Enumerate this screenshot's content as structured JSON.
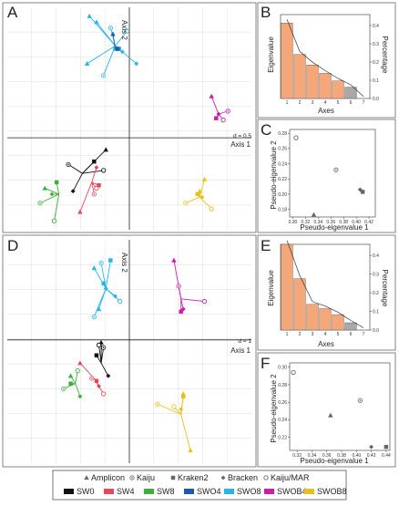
{
  "chart_data": [
    {
      "panel": "A",
      "type": "scatter",
      "axis1_label": "Axis 1",
      "axis2_label": "Axis 2",
      "d_label": "d = 0.5",
      "xlim": [
        -2.6,
        2.6
      ],
      "ylim": [
        -1.55,
        2.2
      ],
      "groups": [
        {
          "sample": "SWO8",
          "color": "#29b5e8",
          "centroid": [
            -0.3,
            1.55
          ],
          "points": [
            {
              "method": "Amplicon",
              "x": -0.85,
              "y": 2.05
            },
            {
              "method": "Kaiju",
              "x": -0.4,
              "y": 1.85
            },
            {
              "method": "Kraken2",
              "x": -0.22,
              "y": 1.5
            },
            {
              "method": "Bracken",
              "x": -0.15,
              "y": 1.45
            },
            {
              "method": "Kaiju/MAR",
              "x": -0.05,
              "y": 1.8
            },
            {
              "method": "Amplicon",
              "x": -0.9,
              "y": 1.25
            },
            {
              "method": "Kaiju",
              "x": -0.55,
              "y": 1.05
            },
            {
              "method": "Kraken2",
              "x": -0.3,
              "y": 1.5
            },
            {
              "method": "Bracken",
              "x": 0.15,
              "y": 1.25
            },
            {
              "method": "Amplicon",
              "x": -0.7,
              "y": 1.95
            }
          ]
        },
        {
          "sample": "SWO4",
          "color": "#1e5aa8",
          "centroid": [
            -0.3,
            1.5
          ],
          "points": [
            {
              "method": "Amplicon",
              "x": -0.35,
              "y": 1.75
            },
            {
              "method": "Kraken2",
              "x": -0.25,
              "y": 1.5
            }
          ]
        },
        {
          "sample": "SWOB4",
          "color": "#c81eaa",
          "centroid": [
            1.9,
            0.4
          ],
          "points": [
            {
              "method": "Amplicon",
              "x": 1.75,
              "y": 0.7
            },
            {
              "method": "Kaiju",
              "x": 2.1,
              "y": 0.45
            },
            {
              "method": "Kraken2",
              "x": 1.85,
              "y": 0.33
            },
            {
              "method": "Bracken",
              "x": 1.9,
              "y": 0.4
            },
            {
              "method": "Kaiju/MAR",
              "x": 2.0,
              "y": 0.3
            }
          ]
        },
        {
          "sample": "SWOB8",
          "color": "#e8c21c",
          "centroid": [
            1.5,
            -1.0
          ],
          "points": [
            {
              "method": "Amplicon",
              "x": 1.6,
              "y": -0.7
            },
            {
              "method": "Kaiju",
              "x": 1.2,
              "y": -1.1
            },
            {
              "method": "Kraken2",
              "x": 1.45,
              "y": -0.95
            },
            {
              "method": "Bracken",
              "x": 1.55,
              "y": -1.0
            },
            {
              "method": "Kaiju/MAR",
              "x": 1.75,
              "y": -1.2
            },
            {
              "method": "Amplicon",
              "x": 1.5,
              "y": -0.9
            }
          ]
        },
        {
          "sample": "SW0",
          "color": "#111111",
          "centroid": [
            -1.0,
            -0.6
          ],
          "points": [
            {
              "method": "Amplicon",
              "x": -0.5,
              "y": -0.2
            },
            {
              "method": "Kaiju",
              "x": -1.3,
              "y": -0.45
            },
            {
              "method": "Kraken2",
              "x": -0.75,
              "y": -0.4
            },
            {
              "method": "Bracken",
              "x": -1.2,
              "y": -0.9
            },
            {
              "method": "Kaiju/MAR",
              "x": -0.55,
              "y": -0.55
            }
          ]
        },
        {
          "sample": "SW4",
          "color": "#e04a5a",
          "centroid": [
            -0.8,
            -0.75
          ],
          "points": [
            {
              "method": "Amplicon",
              "x": -1.05,
              "y": -1.25
            },
            {
              "method": "Kaiju",
              "x": -0.75,
              "y": -0.95
            },
            {
              "method": "Kraken2",
              "x": -0.65,
              "y": -0.8
            },
            {
              "method": "Bracken",
              "x": -0.7,
              "y": -0.5
            },
            {
              "method": "Kaiju/MAR",
              "x": -0.7,
              "y": -0.85
            }
          ]
        },
        {
          "sample": "SW8",
          "color": "#3fae3f",
          "centroid": [
            -1.5,
            -0.95
          ],
          "points": [
            {
              "method": "Amplicon",
              "x": -1.8,
              "y": -0.85
            },
            {
              "method": "Kaiju",
              "x": -1.9,
              "y": -1.1
            },
            {
              "method": "Kraken2",
              "x": -1.55,
              "y": -0.75
            },
            {
              "method": "Bracken",
              "x": -1.65,
              "y": -0.95
            },
            {
              "method": "Kaiju/MAR",
              "x": -1.6,
              "y": -1.4
            }
          ]
        }
      ]
    },
    {
      "panel": "B",
      "type": "bar",
      "xlabel": "Axes",
      "ylabel": "Eigenvalue",
      "y2label": "Percentage",
      "categories": [
        "1",
        "2",
        "3",
        "4",
        "5",
        "6",
        "7"
      ],
      "values": [
        1.8,
        1.05,
        0.8,
        0.6,
        0.42,
        0.27,
        0.0
      ],
      "highlight_color": "#f5a77a",
      "gray_color": "#a8a8a8",
      "ylim": [
        0,
        2.0
      ],
      "y2_ticks": [
        "0.0",
        "0.1",
        "0.2",
        "0.3",
        "0.4"
      ]
    },
    {
      "panel": "C",
      "type": "scatter",
      "xlabel": "Pseudo-eigenvalue 1",
      "ylabel": "Pseudo-eigenvalue 2",
      "x_ticks": [
        "0.30",
        "0.32",
        "0.34",
        "0.36",
        "0.38",
        "0.40",
        "0.42"
      ],
      "y_ticks": [
        "0.18",
        "0.20",
        "0.22",
        "0.24",
        "0.26",
        "0.28"
      ],
      "xlim": [
        0.295,
        0.43
      ],
      "ylim": [
        0.17,
        0.285
      ],
      "points": [
        {
          "method": "Kaiju/MAR",
          "x": 0.305,
          "y": 0.274
        },
        {
          "method": "Kaiju",
          "x": 0.368,
          "y": 0.232
        },
        {
          "method": "Bracken",
          "x": 0.406,
          "y": 0.206
        },
        {
          "method": "Kraken2",
          "x": 0.41,
          "y": 0.203
        },
        {
          "method": "Amplicon",
          "x": 0.333,
          "y": 0.173
        }
      ]
    },
    {
      "panel": "D",
      "type": "scatter",
      "axis1_label": "Axis 1",
      "axis2_label": "Axis 2",
      "d_label": "d = 1",
      "xlim": [
        -2.6,
        2.6
      ],
      "ylim": [
        -2.4,
        1.95
      ],
      "groups": [
        {
          "sample": "SWO8",
          "color": "#29b5e8",
          "centroid": [
            -0.5,
            1.0
          ],
          "points": [
            {
              "method": "Amplicon",
              "x": -0.75,
              "y": 1.4
            },
            {
              "method": "Kaiju",
              "x": -0.6,
              "y": 1.5
            },
            {
              "method": "Kraken2",
              "x": -0.55,
              "y": 1.1
            },
            {
              "method": "Bracken",
              "x": -0.3,
              "y": 0.85
            },
            {
              "method": "Kaiju/MAR",
              "x": -0.2,
              "y": 0.75
            },
            {
              "method": "Amplicon",
              "x": -0.65,
              "y": 0.6
            },
            {
              "method": "Kaiju",
              "x": -0.75,
              "y": 0.45
            },
            {
              "method": "Kraken2",
              "x": -0.4,
              "y": 1.55
            },
            {
              "method": "Bracken",
              "x": -0.5,
              "y": 1.0
            }
          ]
        },
        {
          "sample": "SWOB4",
          "color": "#c81eaa",
          "centroid": [
            1.1,
            0.8
          ],
          "points": [
            {
              "method": "Amplicon",
              "x": 0.95,
              "y": 1.55
            },
            {
              "method": "Kaiju",
              "x": 1.05,
              "y": 1.05
            },
            {
              "method": "Kraken2",
              "x": 1.1,
              "y": 0.55
            },
            {
              "method": "Bracken",
              "x": 1.15,
              "y": 0.6
            },
            {
              "method": "Kaiju/MAR",
              "x": 1.6,
              "y": 0.75
            }
          ]
        },
        {
          "sample": "SWOB8",
          "color": "#e8c21c",
          "centroid": [
            1.1,
            -1.45
          ],
          "points": [
            {
              "method": "Amplicon",
              "x": 1.15,
              "y": -1.05
            },
            {
              "method": "Kaiju",
              "x": 0.6,
              "y": -1.25
            },
            {
              "method": "Kraken2",
              "x": 1.15,
              "y": -1.1
            },
            {
              "method": "Bracken",
              "x": 1.1,
              "y": -1.35
            },
            {
              "method": "Kaiju/MAR",
              "x": 0.95,
              "y": -1.3
            },
            {
              "method": "Amplicon",
              "x": 1.3,
              "y": -2.15
            }
          ]
        },
        {
          "sample": "SW0",
          "color": "#111111",
          "centroid": [
            -0.6,
            -0.45
          ],
          "points": [
            {
              "method": "Amplicon",
              "x": -0.6,
              "y": -0.05
            },
            {
              "method": "Kaiju",
              "x": -0.55,
              "y": -0.15
            },
            {
              "method": "Kraken2",
              "x": -0.7,
              "y": -0.3
            },
            {
              "method": "Bracken",
              "x": -0.45,
              "y": -0.7
            },
            {
              "method": "Kaiju/MAR",
              "x": -0.65,
              "y": -0.1
            }
          ]
        },
        {
          "sample": "SW4",
          "color": "#e04a5a",
          "centroid": [
            -0.75,
            -0.75
          ],
          "points": [
            {
              "method": "Amplicon",
              "x": -1.05,
              "y": -0.45
            },
            {
              "method": "Kaiju",
              "x": -0.8,
              "y": -0.75
            },
            {
              "method": "Kraken2",
              "x": -0.7,
              "y": -0.8
            },
            {
              "method": "Bracken",
              "x": -0.65,
              "y": -0.9
            },
            {
              "method": "Kaiju/MAR",
              "x": -0.55,
              "y": -1.05
            }
          ]
        },
        {
          "sample": "SW8",
          "color": "#3fae3f",
          "centroid": [
            -1.15,
            -0.85
          ],
          "points": [
            {
              "method": "Amplicon",
              "x": -1.25,
              "y": -0.7
            },
            {
              "method": "Kaiju",
              "x": -1.4,
              "y": -0.95
            },
            {
              "method": "Kraken2",
              "x": -1.25,
              "y": -0.85
            },
            {
              "method": "Bracken",
              "x": -1.05,
              "y": -1.1
            },
            {
              "method": "Kaiju/MAR",
              "x": -1.1,
              "y": -0.6
            }
          ]
        }
      ]
    },
    {
      "panel": "E",
      "type": "bar",
      "xlabel": "Axes",
      "ylabel": "Eigenvalue",
      "y2label": "Percentage",
      "categories": [
        "1",
        "2",
        "3",
        "4",
        "5",
        "6",
        "7"
      ],
      "values": [
        2.0,
        1.2,
        0.6,
        0.5,
        0.36,
        0.17,
        0.0
      ],
      "highlight_color": "#f5a77a",
      "gray_color": "#a8a8a8",
      "ylim": [
        0,
        2.0
      ],
      "y2_ticks": [
        "0.0",
        "0.1",
        "0.2",
        "0.3",
        "0.4"
      ]
    },
    {
      "panel": "F",
      "type": "scatter",
      "xlabel": "Pseudo-eigenvalue 1",
      "ylabel": "Pseudo-eigenvalue 2",
      "x_ticks": [
        "0.32",
        "0.34",
        "0.36",
        "0.38",
        "0.40",
        "0.42",
        "0.44"
      ],
      "y_ticks": [
        "0.22",
        "0.24",
        "0.26",
        "0.28",
        "0.30"
      ],
      "xlim": [
        0.31,
        0.445
      ],
      "ylim": [
        0.205,
        0.305
      ],
      "points": [
        {
          "method": "Kaiju/MAR",
          "x": 0.315,
          "y": 0.294
        },
        {
          "method": "Kaiju",
          "x": 0.405,
          "y": 0.262
        },
        {
          "method": "Amplicon",
          "x": 0.365,
          "y": 0.245
        },
        {
          "method": "Bracken",
          "x": 0.42,
          "y": 0.209
        },
        {
          "method": "Kraken2",
          "x": 0.44,
          "y": 0.209
        }
      ]
    }
  ],
  "panels": {
    "A": "A",
    "B": "B",
    "C": "C",
    "D": "D",
    "E": "E",
    "F": "F"
  },
  "legend": {
    "methods": [
      "Amplicon",
      "Kaiju",
      "Kraken2",
      "Bracken",
      "Kaiju/MAR"
    ],
    "samples": [
      {
        "name": "SW0",
        "color": "#111111"
      },
      {
        "name": "SW4",
        "color": "#e04a5a"
      },
      {
        "name": "SW8",
        "color": "#3fae3f"
      },
      {
        "name": "SWO4",
        "color": "#1e5aa8"
      },
      {
        "name": "SWO8",
        "color": "#29b5e8"
      },
      {
        "name": "SWOB4",
        "color": "#c81eaa"
      },
      {
        "name": "SWOB8",
        "color": "#e8c21c"
      }
    ]
  }
}
